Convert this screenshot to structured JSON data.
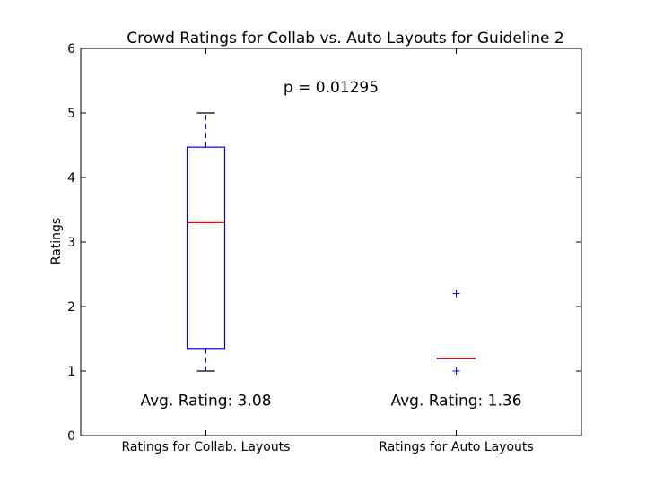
{
  "chart_data": {
    "type": "box",
    "title": "Crowd Ratings for Collab vs. Auto Layouts for Guideline 2",
    "xlabel": "",
    "ylabel": "Ratings",
    "ylim": [
      0,
      6
    ],
    "yticks": [
      "0",
      "1",
      "2",
      "3",
      "4",
      "5",
      "6"
    ],
    "categories": [
      "Ratings for Collab. Layouts",
      "Ratings for Auto Layouts"
    ],
    "boxes": [
      {
        "whisker_low": 1.0,
        "q1": 1.35,
        "median": 3.3,
        "q3": 4.47,
        "whisker_high": 5.0,
        "outliers": []
      },
      {
        "whisker_low": 1.2,
        "q1": 1.2,
        "median": 1.2,
        "q3": 1.2,
        "whisker_high": 1.2,
        "outliers": [
          2.2,
          1.0
        ]
      }
    ],
    "annotations": [
      {
        "text": "p = 0.01295",
        "x": 1.5,
        "y": 5.4
      },
      {
        "text": "Avg. Rating: 3.08",
        "x": 1,
        "y": 0.55
      },
      {
        "text": "Avg. Rating: 1.36",
        "x": 2,
        "y": 0.55
      }
    ],
    "box_color": "#0000ff",
    "median_color": "#ff0000",
    "grid": false
  }
}
